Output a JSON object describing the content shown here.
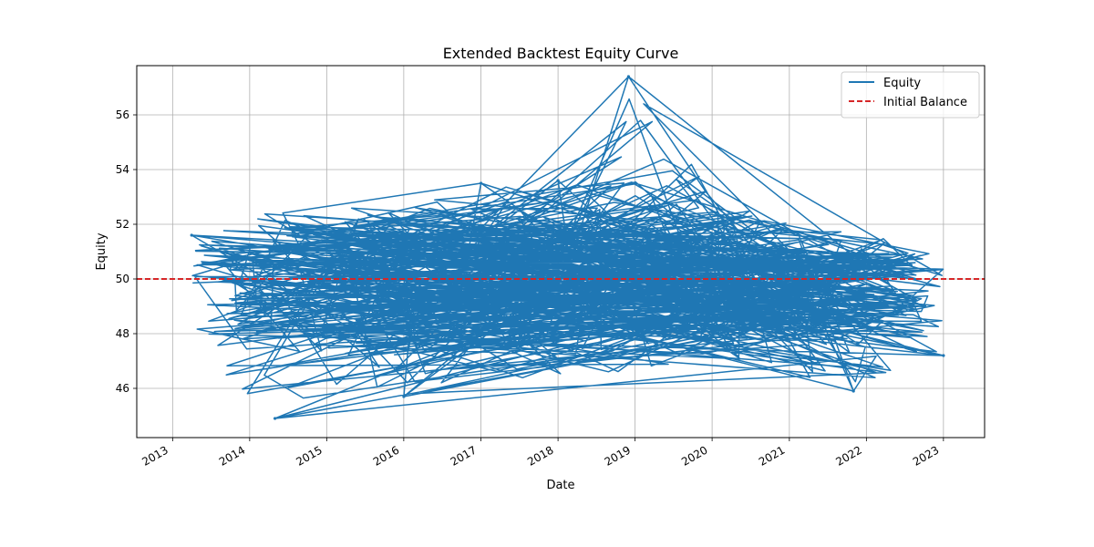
{
  "chart_data": {
    "type": "line",
    "title": "Extended Backtest Equity Curve",
    "xlabel": "Date",
    "ylabel": "Equity",
    "x_tick_labels": [
      "2013",
      "2014",
      "2015",
      "2016",
      "2017",
      "2018",
      "2019",
      "2020",
      "2021",
      "2022",
      "2023"
    ],
    "y_tick_labels": [
      "46",
      "48",
      "50",
      "52",
      "54",
      "56"
    ],
    "y_ticks": [
      46,
      48,
      50,
      52,
      54,
      56
    ],
    "ylim": [
      44.2,
      57.8
    ],
    "xlim": [
      "2012-07-15",
      "2023-07-15"
    ],
    "grid": true,
    "legend_position": "top-right",
    "series": [
      {
        "name": "Equity",
        "color": "#1f77b4",
        "style": "solid",
        "x": [
          "2013-04-01",
          "2014-05-01",
          "2016-01-01",
          "2017-01-01",
          "2018-01-01",
          "2018-12-01",
          "2019-12-01",
          "2020-12-01",
          "2021-11-01",
          "2022-08-01",
          "2023-01-01"
        ],
        "y": [
          51.6,
          44.9,
          45.7,
          53.5,
          53.6,
          57.4,
          53.2,
          51.8,
          45.9,
          50.5,
          47.2
        ]
      },
      {
        "name": "Initial Balance",
        "color": "#d62728",
        "style": "dashed",
        "y_constant": 50
      }
    ]
  }
}
